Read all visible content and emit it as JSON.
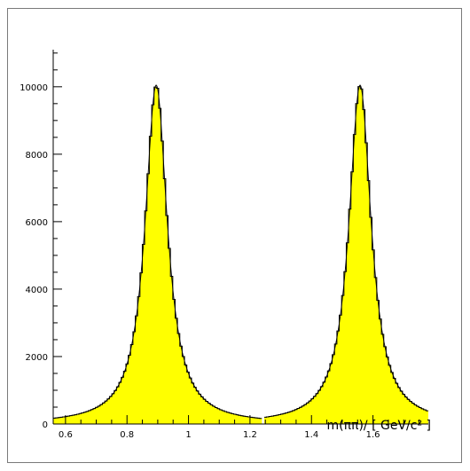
{
  "chart_data": {
    "type": "area",
    "xlabel": "m(ππ)/ [ GeV/c² ]",
    "ylabel": "",
    "title": "",
    "xlim": [
      0.56,
      1.78
    ],
    "ylim": [
      0,
      11100
    ],
    "x_ticks": [
      0.6,
      0.8,
      1.0,
      1.2,
      1.4,
      1.6
    ],
    "x_tick_labels": [
      "0.6",
      "0.8",
      "1",
      "1.2",
      "1.4",
      "1.6"
    ],
    "y_ticks": [
      0,
      2000,
      4000,
      6000,
      8000,
      10000
    ],
    "y_tick_labels": [
      "0",
      "2000",
      "4000",
      "6000",
      "8000",
      "10000"
    ],
    "fill_color": "#ffff00",
    "line_color": "#000000",
    "series": [
      {
        "peak_mass": 0.895,
        "peak_height": 10050,
        "half_width": 0.044,
        "range": [
          0.56,
          1.235
        ],
        "samples": {
          "x": [
            0.56,
            0.6,
            0.7,
            0.8,
            0.85,
            0.895,
            0.95,
            1.0,
            1.1,
            1.2,
            1.23
          ],
          "y": [
            250,
            500,
            1200,
            2700,
            6000,
            10050,
            5000,
            1500,
            400,
            30,
            0
          ]
        }
      },
      {
        "peak_mass": 1.558,
        "peak_height": 10050,
        "half_width": 0.044,
        "range": [
          1.25,
          1.78
        ],
        "samples": {
          "x": [
            1.26,
            1.3,
            1.4,
            1.5,
            1.558,
            1.6,
            1.65,
            1.7,
            1.78
          ],
          "y": [
            0,
            60,
            700,
            3500,
            10050,
            5600,
            2700,
            1600,
            1000
          ]
        }
      }
    ]
  }
}
